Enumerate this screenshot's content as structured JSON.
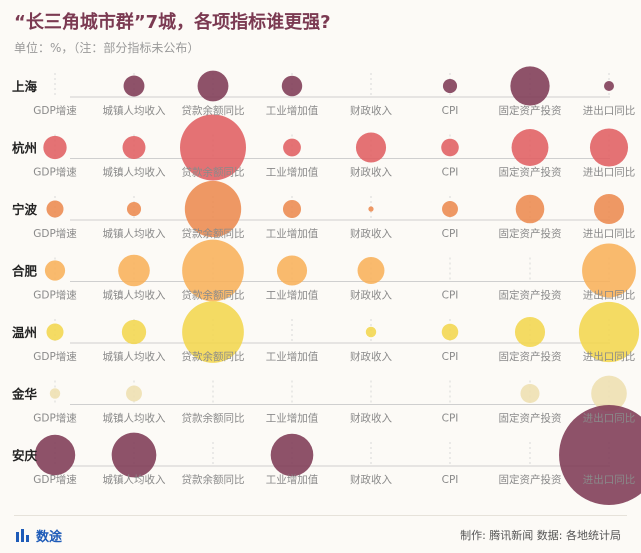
{
  "header": {
    "title": "“长三角城市群”7城，各项指标谁更强?",
    "subtitle": "单位：%，（注：部分指标未公布）"
  },
  "footer": {
    "brand": "数途",
    "source": "制作: 腾讯新闻  数据: 各地统计局"
  },
  "chart_data": {
    "type": "scatter",
    "encoding": "bubble",
    "indicators": [
      "GDP增速",
      "城镇人均收入",
      "贷款余额同比",
      "工业增加值",
      "财政收入",
      "CPI",
      "固定资产投资",
      "进出口同比"
    ],
    "cities": [
      {
        "name": "上海",
        "color": "#7e3a55",
        "values": [
          null,
          4.8,
          10.5,
          4.6,
          null,
          2.2,
          17.0,
          1.1
        ]
      },
      {
        "name": "杭州",
        "color": "#e05f62",
        "values": [
          6.0,
          5.8,
          48.0,
          3.5,
          10.0,
          3.4,
          15.0,
          16.0
        ]
      },
      {
        "name": "宁波",
        "color": "#ec8a50",
        "values": [
          3.2,
          2.2,
          35.0,
          3.6,
          0.3,
          2.8,
          9.0,
          10.0
        ]
      },
      {
        "name": "合肥",
        "color": "#f8b15a",
        "values": [
          4.5,
          11.0,
          42.0,
          10.0,
          8.0,
          null,
          null,
          32.0
        ]
      },
      {
        "name": "温州",
        "color": "#f2d64e",
        "values": [
          3.2,
          6.5,
          42.0,
          null,
          1.2,
          3.0,
          10.0,
          40.0
        ]
      },
      {
        "name": "金华",
        "color": "#eedfb0",
        "values": [
          1.2,
          2.8,
          null,
          null,
          null,
          null,
          4.0,
          14.0
        ]
      },
      {
        "name": "安庆",
        "color": "#7e3a55",
        "values": [
          18.0,
          22.0,
          null,
          20.0,
          null,
          null,
          null,
          110.0
        ]
      }
    ]
  }
}
